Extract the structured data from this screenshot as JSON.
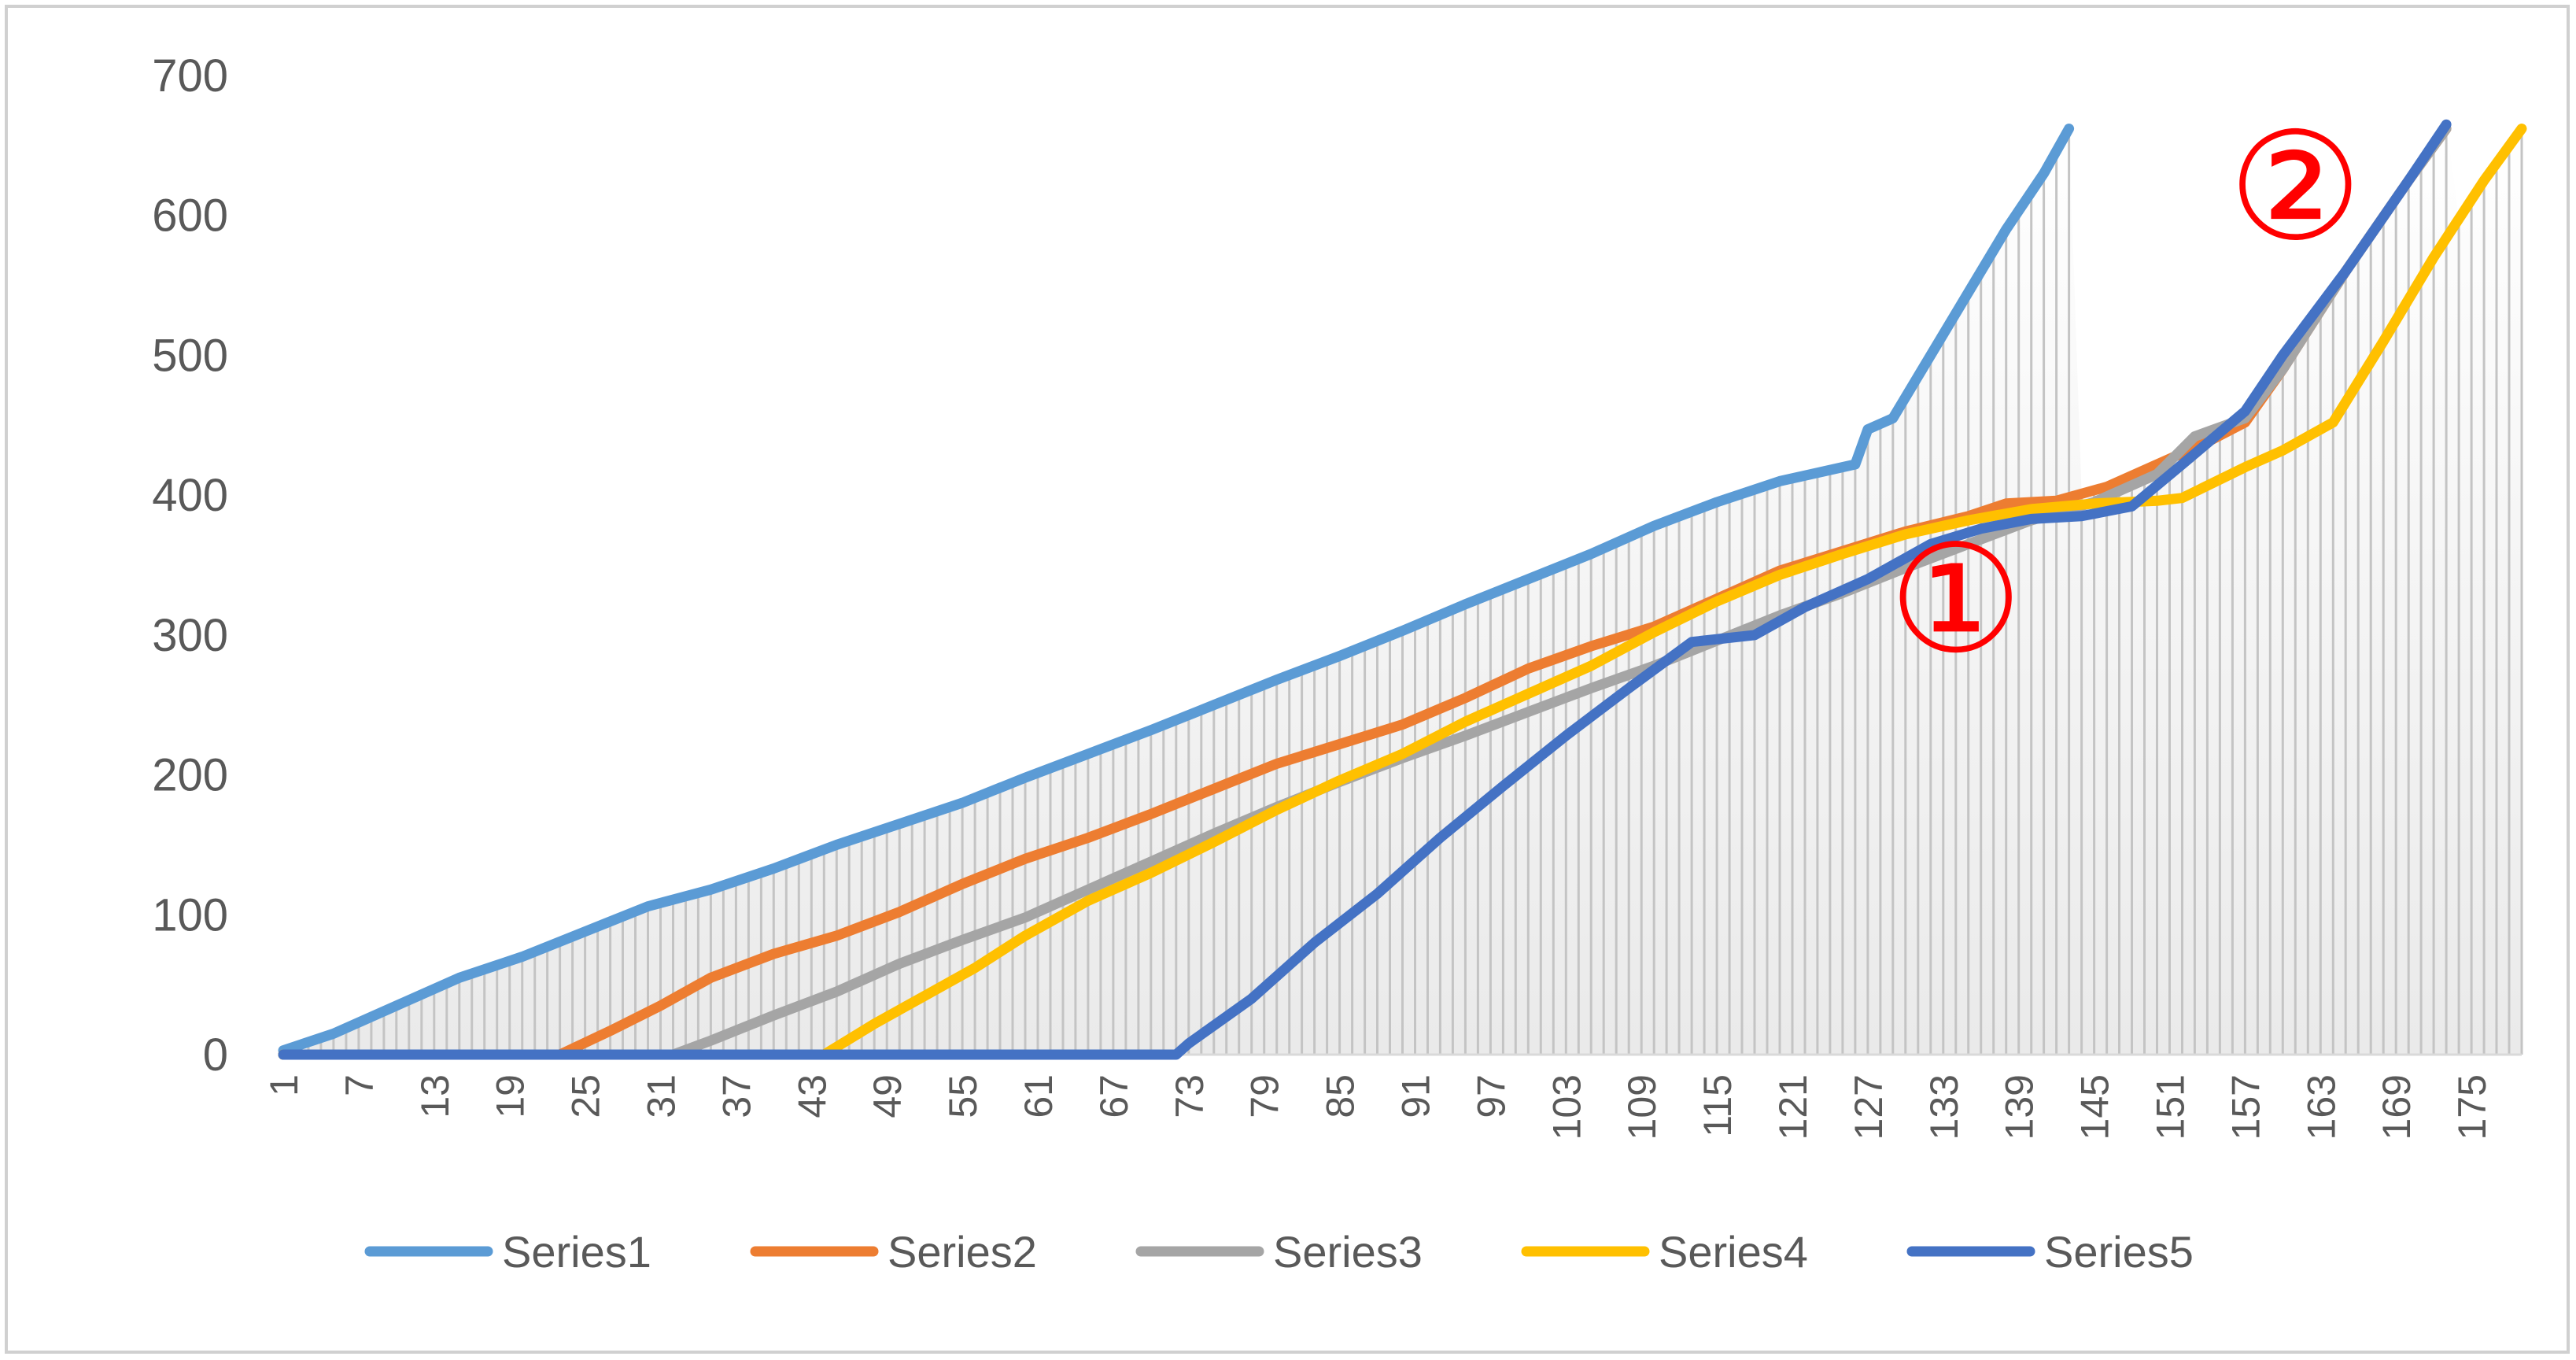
{
  "chart_data": {
    "type": "line",
    "title": "",
    "xlabel": "",
    "ylabel": "",
    "x_range": [
      1,
      179
    ],
    "x_tick_labels": [
      1,
      7,
      13,
      19,
      25,
      31,
      37,
      43,
      49,
      55,
      61,
      67,
      73,
      79,
      85,
      91,
      97,
      103,
      109,
      115,
      121,
      127,
      133,
      139,
      145,
      151,
      157,
      163,
      169,
      175
    ],
    "ylim": [
      0,
      700
    ],
    "y_ticks": [
      0,
      100,
      200,
      300,
      400,
      500,
      600,
      700
    ],
    "gridlines": false,
    "background": "vertical drop lines from the upper envelope of the series to the x-axis, with a light gradient fill",
    "legend_position": "bottom",
    "series": [
      {
        "name": "Series1",
        "color": "#5b9bd5",
        "points": [
          [
            1,
            3
          ],
          [
            5,
            15
          ],
          [
            10,
            35
          ],
          [
            15,
            55
          ],
          [
            20,
            70
          ],
          [
            25,
            88
          ],
          [
            30,
            106
          ],
          [
            35,
            118
          ],
          [
            40,
            133
          ],
          [
            45,
            150
          ],
          [
            50,
            165
          ],
          [
            55,
            180
          ],
          [
            60,
            198
          ],
          [
            65,
            215
          ],
          [
            70,
            232
          ],
          [
            75,
            250
          ],
          [
            80,
            268
          ],
          [
            85,
            285
          ],
          [
            90,
            303
          ],
          [
            95,
            322
          ],
          [
            100,
            340
          ],
          [
            105,
            358
          ],
          [
            110,
            378
          ],
          [
            115,
            395
          ],
          [
            120,
            410
          ],
          [
            126,
            422
          ],
          [
            127,
            447
          ],
          [
            129,
            455
          ],
          [
            132,
            500
          ],
          [
            135,
            545
          ],
          [
            138,
            590
          ],
          [
            141,
            630
          ],
          [
            143,
            662
          ]
        ]
      },
      {
        "name": "Series2",
        "color": "#ed7d31",
        "points": [
          [
            1,
            0
          ],
          [
            23,
            0
          ],
          [
            27,
            17
          ],
          [
            31,
            35
          ],
          [
            35,
            55
          ],
          [
            40,
            72
          ],
          [
            45,
            85
          ],
          [
            50,
            102
          ],
          [
            55,
            122
          ],
          [
            60,
            140
          ],
          [
            65,
            155
          ],
          [
            70,
            172
          ],
          [
            75,
            190
          ],
          [
            80,
            208
          ],
          [
            85,
            222
          ],
          [
            90,
            236
          ],
          [
            95,
            255
          ],
          [
            100,
            276
          ],
          [
            105,
            292
          ],
          [
            110,
            306
          ],
          [
            115,
            326
          ],
          [
            120,
            346
          ],
          [
            125,
            360
          ],
          [
            130,
            374
          ],
          [
            135,
            385
          ],
          [
            138,
            394
          ],
          [
            142,
            396
          ],
          [
            146,
            406
          ],
          [
            150,
            422
          ],
          [
            154,
            438
          ],
          [
            157,
            452
          ],
          [
            160,
            490
          ],
          [
            165,
            560
          ],
          [
            170,
            625
          ],
          [
            173,
            662
          ]
        ]
      },
      {
        "name": "Series3",
        "color": "#a5a5a5",
        "points": [
          [
            1,
            0
          ],
          [
            32,
            0
          ],
          [
            35,
            10
          ],
          [
            40,
            28
          ],
          [
            45,
            45
          ],
          [
            50,
            65
          ],
          [
            55,
            82
          ],
          [
            60,
            98
          ],
          [
            65,
            118
          ],
          [
            70,
            138
          ],
          [
            75,
            158
          ],
          [
            80,
            177
          ],
          [
            85,
            195
          ],
          [
            90,
            212
          ],
          [
            95,
            228
          ],
          [
            100,
            245
          ],
          [
            105,
            262
          ],
          [
            110,
            278
          ],
          [
            115,
            296
          ],
          [
            120,
            314
          ],
          [
            125,
            330
          ],
          [
            130,
            348
          ],
          [
            135,
            365
          ],
          [
            140,
            382
          ],
          [
            145,
            395
          ],
          [
            150,
            415
          ],
          [
            153,
            442
          ],
          [
            157,
            455
          ],
          [
            160,
            490
          ],
          [
            165,
            560
          ],
          [
            170,
            625
          ],
          [
            173,
            662
          ]
        ]
      },
      {
        "name": "Series4",
        "color": "#ffc000",
        "points": [
          [
            1,
            0
          ],
          [
            44,
            0
          ],
          [
            48,
            22
          ],
          [
            52,
            42
          ],
          [
            56,
            62
          ],
          [
            60,
            85
          ],
          [
            65,
            110
          ],
          [
            70,
            130
          ],
          [
            75,
            152
          ],
          [
            80,
            175
          ],
          [
            85,
            196
          ],
          [
            90,
            215
          ],
          [
            95,
            238
          ],
          [
            100,
            258
          ],
          [
            105,
            278
          ],
          [
            110,
            302
          ],
          [
            115,
            324
          ],
          [
            120,
            343
          ],
          [
            125,
            358
          ],
          [
            130,
            372
          ],
          [
            135,
            382
          ],
          [
            140,
            390
          ],
          [
            145,
            394
          ],
          [
            150,
            396
          ],
          [
            152,
            398
          ],
          [
            157,
            420
          ],
          [
            160,
            432
          ],
          [
            164,
            452
          ],
          [
            168,
            510
          ],
          [
            172,
            570
          ],
          [
            176,
            625
          ],
          [
            179,
            662
          ]
        ]
      },
      {
        "name": "Series5",
        "color": "#4472c4",
        "points": [
          [
            1,
            0
          ],
          [
            72,
            0
          ],
          [
            73,
            8
          ],
          [
            78,
            40
          ],
          [
            83,
            80
          ],
          [
            88,
            115
          ],
          [
            93,
            155
          ],
          [
            98,
            192
          ],
          [
            103,
            228
          ],
          [
            108,
            262
          ],
          [
            113,
            295
          ],
          [
            118,
            300
          ],
          [
            122,
            320
          ],
          [
            127,
            340
          ],
          [
            132,
            365
          ],
          [
            136,
            376
          ],
          [
            140,
            383
          ],
          [
            144,
            385
          ],
          [
            148,
            392
          ],
          [
            152,
            422
          ],
          [
            157,
            460
          ],
          [
            160,
            500
          ],
          [
            165,
            560
          ],
          [
            170,
            625
          ],
          [
            173,
            665
          ]
        ]
      }
    ],
    "annotations": [
      {
        "text": "①",
        "x": 134,
        "y": 325,
        "color": "#ff0000"
      },
      {
        "text": "②",
        "x": 161,
        "y": 620,
        "color": "#ff0000"
      }
    ]
  }
}
